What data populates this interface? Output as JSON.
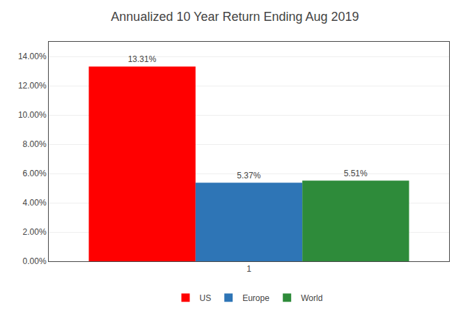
{
  "chart_data": {
    "type": "bar",
    "title": "Annualized 10 Year Return Ending Aug 2019",
    "categories": [
      "1"
    ],
    "series": [
      {
        "name": "US",
        "color": "#FF0000",
        "values": [
          0.1331
        ],
        "value_labels": [
          "13.31%"
        ]
      },
      {
        "name": "Europe",
        "color": "#2E75B6",
        "values": [
          0.0537
        ],
        "value_labels": [
          "5.37%"
        ]
      },
      {
        "name": "World",
        "color": "#2E8B3A",
        "values": [
          0.0551
        ],
        "value_labels": [
          "5.51%"
        ]
      }
    ],
    "ylim": [
      0,
      0.15
    ],
    "yticks": [
      {
        "value": 0,
        "label": "0.00%"
      },
      {
        "value": 0.02,
        "label": "2.00%"
      },
      {
        "value": 0.04,
        "label": "4.00%"
      },
      {
        "value": 0.06,
        "label": "6.00%"
      },
      {
        "value": 0.08,
        "label": "8.00%"
      },
      {
        "value": 0.1,
        "label": "10.00%"
      },
      {
        "value": 0.12,
        "label": "12.00%"
      },
      {
        "value": 0.14,
        "label": "14.00%"
      }
    ],
    "grid": true,
    "legend": "bottom",
    "data_labels": true
  }
}
